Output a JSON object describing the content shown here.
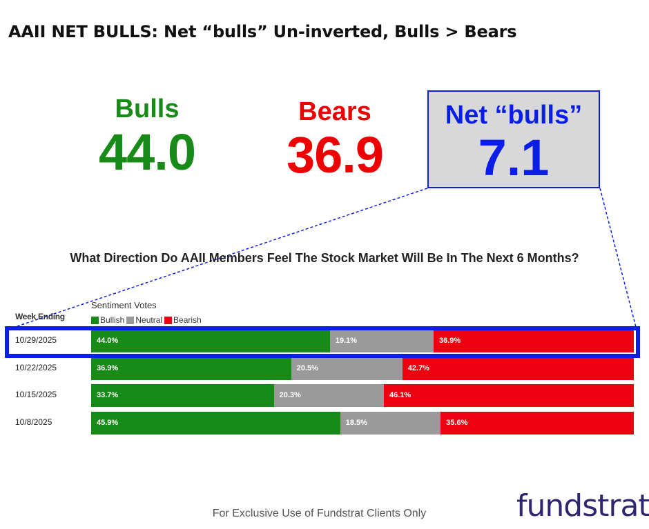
{
  "title": "AAII NET BULLS: Net “bulls” Un-inverted, Bulls > Bears",
  "stats": {
    "bulls_label": "Bulls",
    "bulls_value": "44.0",
    "bears_label": "Bears",
    "bears_value": "36.9",
    "net_label": "Net “bulls”",
    "net_value": "7.1"
  },
  "colors": {
    "bullish": "#178a17",
    "neutral": "#9a9a9a",
    "bearish": "#ee0010",
    "highlight": "#0b1ee8"
  },
  "chart_data": {
    "type": "bar",
    "stacked": "horizontal-100%",
    "title": "What Direction Do AAII Members Feel The Stock Market Will Be In The Next 6 Months?",
    "row_header": "Week Ending",
    "value_header": "Sentiment Votes",
    "categories": [
      "10/29/2025",
      "10/22/2025",
      "10/15/2025",
      "10/8/2025"
    ],
    "series": [
      {
        "name": "Bullish",
        "values": [
          44.0,
          36.9,
          33.7,
          45.9
        ],
        "labels": [
          "44.0%",
          "36.9%",
          "33.7%",
          "45.9%"
        ]
      },
      {
        "name": "Neutral",
        "values": [
          19.1,
          20.5,
          20.3,
          18.5
        ],
        "labels": [
          "19.1%",
          "20.5%",
          "20.3%",
          "18.5%"
        ]
      },
      {
        "name": "Bearish",
        "values": [
          36.9,
          42.7,
          46.1,
          35.6
        ],
        "labels": [
          "36.9%",
          "42.7%",
          "46.1%",
          "35.6%"
        ]
      }
    ],
    "legend_position": "top-left",
    "highlighted_category": "10/29/2025"
  },
  "footer": "For Exclusive Use of Fundstrat Clients Only",
  "logo_text": "fundstrat"
}
